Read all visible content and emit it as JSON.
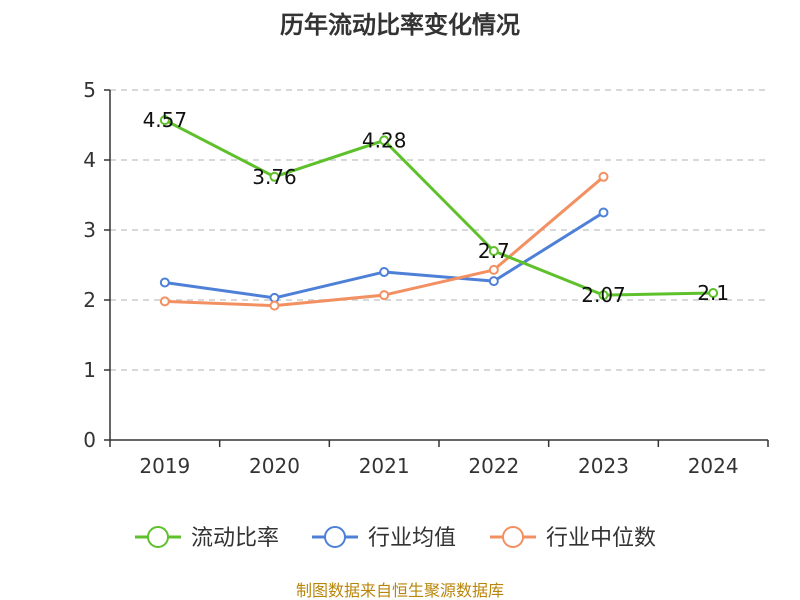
{
  "chart_data": {
    "type": "line",
    "title": "历年流动比率变化情况",
    "categories": [
      "2019",
      "2020",
      "2021",
      "2022",
      "2023",
      "2024"
    ],
    "ylim": [
      0,
      5
    ],
    "yticks": [
      "0",
      "1",
      "2",
      "3",
      "4",
      "5"
    ],
    "grid": true,
    "legend_position": "bottom",
    "series": [
      {
        "name": "流动比率",
        "color": "#5ec12b",
        "values": [
          4.57,
          3.76,
          4.28,
          2.7,
          2.07,
          2.1
        ],
        "labels": [
          "4.57",
          "3.76",
          "4.28",
          "2.7",
          "2.07",
          "2.1"
        ]
      },
      {
        "name": "行业均值",
        "color": "#4f80d7",
        "values": [
          2.25,
          2.03,
          2.4,
          2.27,
          3.25,
          null
        ]
      },
      {
        "name": "行业中位数",
        "color": "#f39062",
        "values": [
          1.98,
          1.92,
          2.07,
          2.43,
          3.76,
          null
        ]
      }
    ]
  },
  "source": "制图数据来自恒生聚源数据库"
}
